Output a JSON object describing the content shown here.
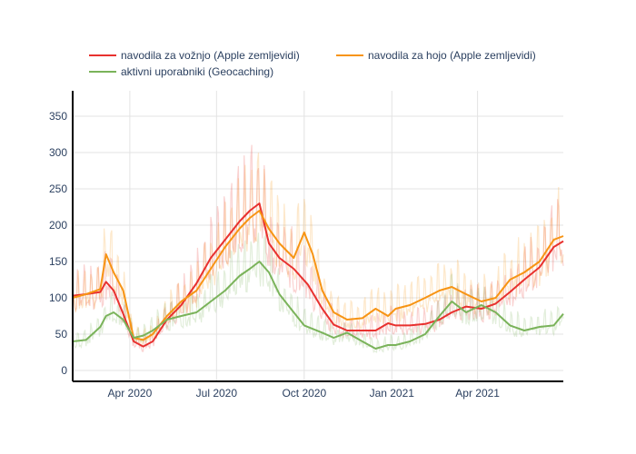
{
  "chart_data": {
    "type": "line",
    "x_range": [
      "2020-02-01",
      "2021-06-30"
    ],
    "ylim": [
      -15,
      385
    ],
    "xticks": [
      {
        "date": "2020-04-01",
        "label": "Apr 2020"
      },
      {
        "date": "2020-07-01",
        "label": "Jul 2020"
      },
      {
        "date": "2020-10-01",
        "label": "Oct 2020"
      },
      {
        "date": "2021-01-01",
        "label": "Jan 2021"
      },
      {
        "date": "2021-04-01",
        "label": "Apr 2021"
      }
    ],
    "yticks": [
      0,
      50,
      100,
      150,
      200,
      250,
      300,
      350
    ],
    "grid": true,
    "legend_position": "top",
    "series": [
      {
        "name": "navodila za vožnjo (Apple zemljevidi)",
        "color": "#e8312f",
        "x": [
          "2020-02-01",
          "2020-02-15",
          "2020-03-01",
          "2020-03-07",
          "2020-03-15",
          "2020-03-25",
          "2020-04-05",
          "2020-04-15",
          "2020-04-25",
          "2020-05-10",
          "2020-05-25",
          "2020-06-10",
          "2020-06-25",
          "2020-07-10",
          "2020-07-25",
          "2020-08-05",
          "2020-08-15",
          "2020-08-25",
          "2020-09-05",
          "2020-09-20",
          "2020-10-05",
          "2020-10-20",
          "2020-11-01",
          "2020-11-15",
          "2020-12-01",
          "2020-12-15",
          "2020-12-28",
          "2021-01-05",
          "2021-01-20",
          "2021-02-05",
          "2021-02-20",
          "2021-03-05",
          "2021-03-20",
          "2021-04-05",
          "2021-04-20",
          "2021-05-05",
          "2021-05-20",
          "2021-06-05",
          "2021-06-20",
          "2021-06-30"
        ],
        "y": [
          103,
          105,
          108,
          122,
          110,
          78,
          40,
          33,
          40,
          70,
          90,
          120,
          155,
          180,
          205,
          220,
          230,
          175,
          155,
          140,
          118,
          85,
          63,
          55,
          55,
          55,
          65,
          62,
          62,
          64,
          70,
          80,
          88,
          85,
          92,
          108,
          125,
          142,
          170,
          178
        ]
      },
      {
        "name": "navodila za hojo (Apple zemljevidi)",
        "color": "#f79414",
        "x": [
          "2020-02-01",
          "2020-02-15",
          "2020-03-01",
          "2020-03-07",
          "2020-03-15",
          "2020-03-25",
          "2020-04-05",
          "2020-04-15",
          "2020-04-25",
          "2020-05-10",
          "2020-05-25",
          "2020-06-10",
          "2020-06-25",
          "2020-07-10",
          "2020-07-25",
          "2020-08-05",
          "2020-08-15",
          "2020-08-25",
          "2020-09-05",
          "2020-09-20",
          "2020-10-01",
          "2020-10-10",
          "2020-10-20",
          "2020-11-01",
          "2020-11-15",
          "2020-12-01",
          "2020-12-15",
          "2020-12-28",
          "2021-01-05",
          "2021-01-20",
          "2021-02-05",
          "2021-02-20",
          "2021-03-05",
          "2021-03-20",
          "2021-04-05",
          "2021-04-20",
          "2021-05-05",
          "2021-05-20",
          "2021-06-05",
          "2021-06-20",
          "2021-06-30"
        ],
        "y": [
          100,
          105,
          112,
          160,
          135,
          110,
          45,
          42,
          50,
          75,
          95,
          110,
          140,
          170,
          195,
          210,
          220,
          195,
          175,
          155,
          190,
          160,
          110,
          80,
          70,
          72,
          85,
          75,
          85,
          90,
          100,
          110,
          115,
          105,
          95,
          100,
          125,
          135,
          150,
          180,
          185
        ]
      },
      {
        "name": "aktivni uporabniki (Geocaching)",
        "color": "#7ab35a",
        "x": [
          "2020-02-01",
          "2020-02-15",
          "2020-03-01",
          "2020-03-07",
          "2020-03-15",
          "2020-03-25",
          "2020-04-05",
          "2020-04-15",
          "2020-04-25",
          "2020-05-10",
          "2020-05-25",
          "2020-06-10",
          "2020-06-25",
          "2020-07-10",
          "2020-07-25",
          "2020-08-05",
          "2020-08-15",
          "2020-08-25",
          "2020-09-05",
          "2020-09-20",
          "2020-10-01",
          "2020-10-20",
          "2020-11-01",
          "2020-11-15",
          "2020-12-01",
          "2020-12-15",
          "2020-12-28",
          "2021-01-05",
          "2021-01-20",
          "2021-02-05",
          "2021-02-20",
          "2021-03-05",
          "2021-03-20",
          "2021-04-05",
          "2021-04-20",
          "2021-05-05",
          "2021-05-20",
          "2021-06-05",
          "2021-06-20",
          "2021-06-30"
        ],
        "y": [
          40,
          42,
          60,
          75,
          80,
          70,
          45,
          48,
          55,
          70,
          75,
          80,
          95,
          110,
          130,
          140,
          150,
          135,
          105,
          80,
          62,
          52,
          45,
          52,
          40,
          30,
          35,
          35,
          40,
          50,
          75,
          95,
          80,
          90,
          80,
          62,
          55,
          60,
          62,
          78
        ]
      }
    ]
  }
}
